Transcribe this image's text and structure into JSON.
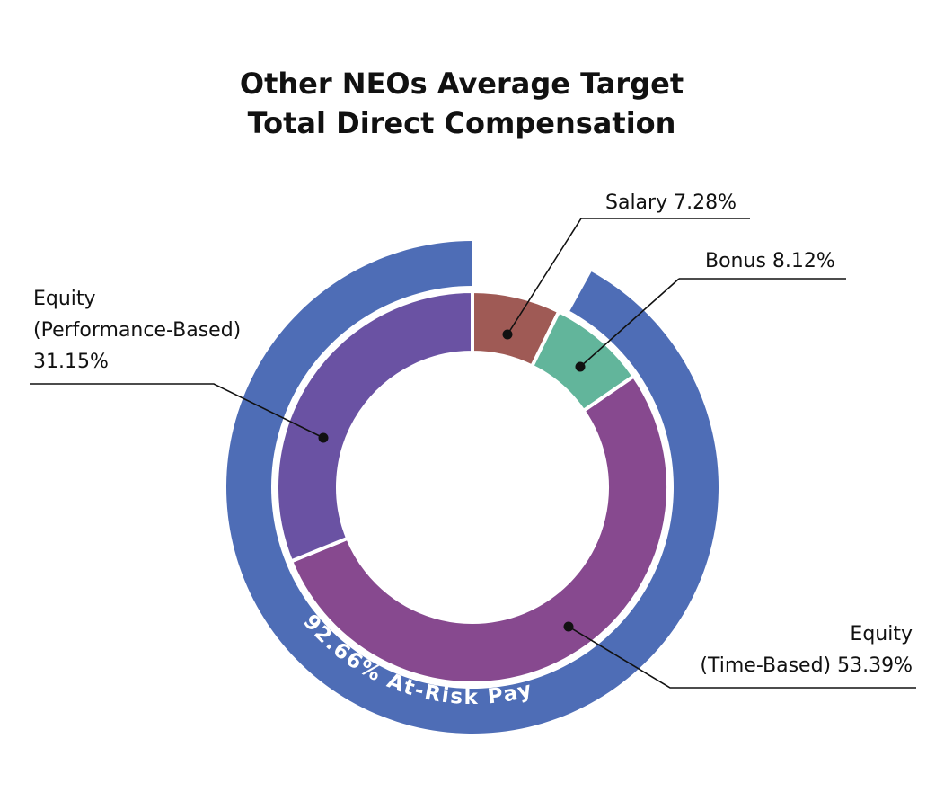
{
  "title_lines": [
    "Other NEOs Average Target",
    "Total Direct Compensation"
  ],
  "chart_data": {
    "type": "pie",
    "title": "Other NEOs Average Target Total Direct Compensation",
    "inner_series": [
      {
        "name": "Salary",
        "value": 7.28,
        "color": "#9f5a55",
        "label_lines": [
          "Salary 7.28%"
        ]
      },
      {
        "name": "Bonus",
        "value": 8.12,
        "color": "#62b59b",
        "label_lines": [
          "Bonus 8.12%"
        ]
      },
      {
        "name": "Equity (Time-Based)",
        "value": 53.39,
        "color": "#87498f",
        "label_lines": [
          "Equity",
          "(Time-Based) 53.39%"
        ]
      },
      {
        "name": "Equity (Performance-Based)",
        "value": 31.15,
        "color": "#6a52a3",
        "label_lines": [
          "Equity",
          "(Performance-Based)",
          "31.15%"
        ]
      }
    ],
    "outer_ring": {
      "name": "At-Risk Pay",
      "value": 92.66,
      "color": "#4e6db6",
      "label": "92.66% At-Risk Pay"
    }
  }
}
